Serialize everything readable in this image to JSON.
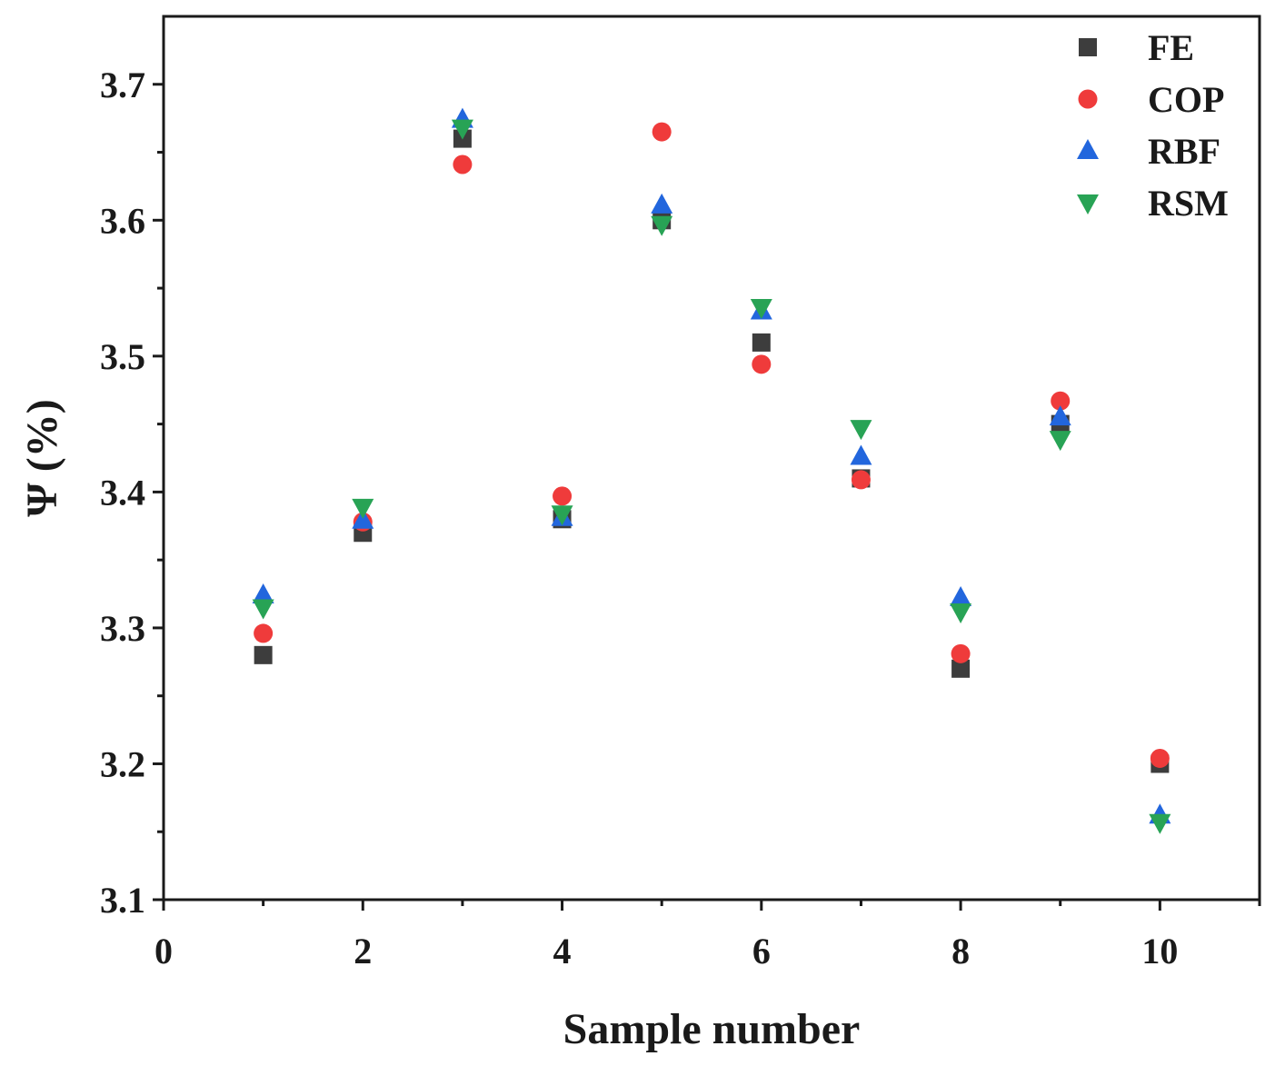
{
  "chart_data": {
    "type": "scatter",
    "xlabel": "Sample number",
    "ylabel": "Ψ (%)",
    "xlim": [
      0,
      11
    ],
    "ylim": [
      3.1,
      3.75
    ],
    "xticks": [
      0,
      2,
      4,
      6,
      8,
      10
    ],
    "yticks": [
      3.1,
      3.2,
      3.3,
      3.4,
      3.5,
      3.6,
      3.7
    ],
    "xtick_labels": [
      "0",
      "2",
      "4",
      "6",
      "8",
      "10"
    ],
    "ytick_labels": [
      "3.1",
      "3.2",
      "3.3",
      "3.4",
      "3.5",
      "3.6",
      "3.7"
    ],
    "grid": false,
    "legend_position": "top-right",
    "x": [
      1,
      2,
      3,
      4,
      5,
      6,
      7,
      8,
      9,
      10
    ],
    "series": [
      {
        "name": "FE",
        "marker": "square",
        "color": "#3d3d3d",
        "values": [
          3.28,
          3.37,
          3.66,
          3.38,
          3.6,
          3.51,
          3.41,
          3.27,
          3.45,
          3.2
        ]
      },
      {
        "name": "COP",
        "marker": "circle",
        "color": "#ef3b3b",
        "values": [
          3.296,
          3.378,
          3.641,
          3.397,
          3.665,
          3.494,
          3.409,
          3.281,
          3.467,
          3.204
        ]
      },
      {
        "name": "RBF",
        "marker": "triangle-up",
        "color": "#2266dd",
        "values": [
          3.324,
          3.379,
          3.674,
          3.381,
          3.611,
          3.533,
          3.426,
          3.322,
          3.455,
          3.162
        ]
      },
      {
        "name": "RSM",
        "marker": "triangle-down",
        "color": "#28a355",
        "values": [
          3.315,
          3.389,
          3.668,
          3.384,
          3.597,
          3.536,
          3.447,
          3.312,
          3.439,
          3.157
        ]
      }
    ]
  }
}
